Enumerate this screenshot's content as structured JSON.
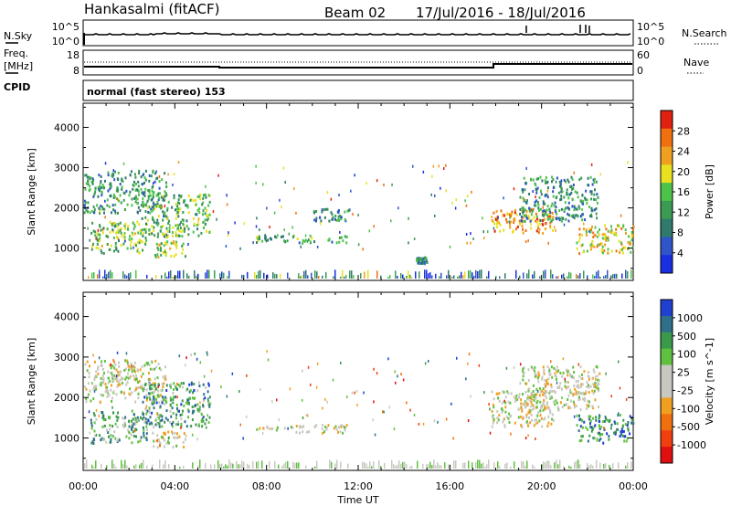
{
  "header": {
    "station": "Hankasalmi (fitACF)",
    "beam": "Beam 02",
    "dates": "17/Jul/2016 - 18/Jul/2016"
  },
  "left_labels": {
    "nsky": "N.Sky",
    "freq_line1": "Freq.",
    "freq_line2": "[MHz]",
    "cpid": "CPID"
  },
  "right_labels": {
    "nsearch": "N.Search",
    "nave": "Nave"
  },
  "noise_panel": {
    "left_ticks": [
      "10^5",
      "10^0"
    ],
    "right_ticks": [
      "10^5",
      "10^0"
    ]
  },
  "freq_panel": {
    "left_ticks": [
      "18",
      "8"
    ],
    "right_ticks": [
      "60",
      "0"
    ]
  },
  "cpid_panel": {
    "text": "normal (fast stereo) 153"
  },
  "x_axis": {
    "label": "Time UT",
    "ticks": [
      "00:00",
      "04:00",
      "08:00",
      "12:00",
      "16:00",
      "20:00",
      "00:00"
    ]
  },
  "colors": {
    "power": [
      "#1a2fe0",
      "#2f55c8",
      "#2f7a6a",
      "#3b9b52",
      "#4dc24a",
      "#e8e020",
      "#f0a020",
      "#f07010",
      "#e02010"
    ],
    "velocity": [
      "#e01010",
      "#f04010",
      "#f07010",
      "#f0a020",
      "#c8c8c0",
      "#c8c8c0",
      "#60c040",
      "#3a9a4a",
      "#2f6f8a",
      "#2040d0"
    ]
  },
  "chart_data": [
    {
      "type": "heatmap",
      "title": "",
      "xlabel": "Time UT",
      "ylabel": "Slant Range [km]",
      "x_ticks": [
        "00:00",
        "04:00",
        "08:00",
        "12:00",
        "16:00",
        "20:00",
        "00:00"
      ],
      "y_ticks": [
        1000,
        2000,
        3000,
        4000
      ],
      "ylim": [
        200,
        4600
      ],
      "xlim_hours": [
        0,
        24
      ],
      "colorbar": {
        "label": "Power [dB]",
        "ticks": [
          "4",
          "8",
          "12",
          "16",
          "20",
          "24",
          "28"
        ],
        "range": [
          0,
          30
        ]
      },
      "echo_regions": [
        {
          "t0": 0.0,
          "t1": 3.6,
          "r0": 1900,
          "r1": 2950,
          "level": 0.35
        },
        {
          "t0": 0.3,
          "t1": 2.8,
          "r0": 900,
          "r1": 1700,
          "level": 0.5
        },
        {
          "t0": 2.5,
          "t1": 5.5,
          "r0": 1300,
          "r1": 2400,
          "level": 0.45
        },
        {
          "t0": 3.0,
          "t1": 4.5,
          "r0": 800,
          "r1": 1200,
          "level": 0.55
        },
        {
          "t0": 7.5,
          "t1": 11.5,
          "r0": 1150,
          "r1": 1350,
          "level": 0.4
        },
        {
          "t0": 10.0,
          "t1": 11.7,
          "r0": 1700,
          "r1": 2000,
          "level": 0.3
        },
        {
          "t0": 14.5,
          "t1": 15.0,
          "r0": 650,
          "r1": 800,
          "level": 0.35
        },
        {
          "t0": 17.8,
          "t1": 20.5,
          "r0": 1400,
          "r1": 2000,
          "level": 0.75
        },
        {
          "t0": 19.0,
          "t1": 22.5,
          "r0": 1700,
          "r1": 2800,
          "level": 0.35
        },
        {
          "t0": 21.5,
          "t1": 24.0,
          "r0": 900,
          "r1": 1600,
          "level": 0.65
        }
      ]
    },
    {
      "type": "heatmap",
      "title": "",
      "xlabel": "Time UT",
      "ylabel": "Slant Range [km]",
      "x_ticks": [
        "00:00",
        "04:00",
        "08:00",
        "12:00",
        "16:00",
        "20:00",
        "00:00"
      ],
      "y_ticks": [
        1000,
        2000,
        3000,
        4000
      ],
      "ylim": [
        200,
        4600
      ],
      "xlim_hours": [
        0,
        24
      ],
      "colorbar": {
        "label": "Velocity [m s^-1]",
        "ticks": [
          "1000",
          "500",
          "100",
          "25",
          "-25",
          "-100",
          "-500",
          "-1000"
        ],
        "range": [
          -1000,
          1000
        ]
      },
      "echo_regions": [
        {
          "t0": 0.0,
          "t1": 3.6,
          "r0": 1900,
          "r1": 2950,
          "level": 0.5
        },
        {
          "t0": 0.3,
          "t1": 2.8,
          "r0": 900,
          "r1": 1700,
          "level": 0.7
        },
        {
          "t0": 2.5,
          "t1": 5.5,
          "r0": 1300,
          "r1": 2400,
          "level": 0.75
        },
        {
          "t0": 3.0,
          "t1": 4.5,
          "r0": 800,
          "r1": 1200,
          "level": 0.45
        },
        {
          "t0": 7.5,
          "t1": 11.5,
          "r0": 1150,
          "r1": 1350,
          "level": 0.5
        },
        {
          "t0": 17.8,
          "t1": 20.5,
          "r0": 1300,
          "r1": 2200,
          "level": 0.5
        },
        {
          "t0": 19.0,
          "t1": 22.5,
          "r0": 1700,
          "r1": 2800,
          "level": 0.5
        },
        {
          "t0": 21.5,
          "t1": 24.0,
          "r0": 900,
          "r1": 1600,
          "level": 0.8
        }
      ]
    }
  ]
}
